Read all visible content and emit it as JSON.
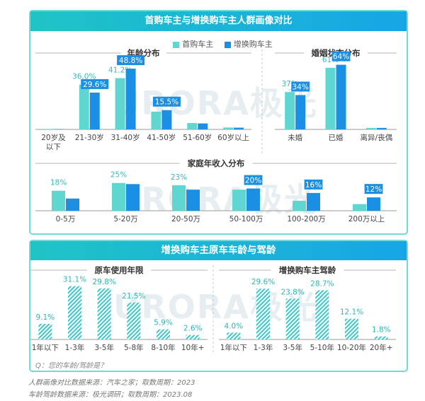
{
  "top_panel": {
    "title": "首购车主与增换购车主人群画像对比",
    "legend": [
      {
        "label": "首购车主",
        "color": "#5fd6cf"
      },
      {
        "label": "增换购车主",
        "color": "#1a8fe3"
      }
    ]
  },
  "bottom_panel": {
    "title": "增换购车主原车车龄与驾龄",
    "question": "Q：您的车龄/驾龄是？"
  },
  "watermark": "URORA极光",
  "footnotes": [
    "人群画像对比数据来源：汽车之家；取数周期：2023",
    "车龄驾龄数据来源：极光调研；取数周期：2023.08"
  ],
  "chart_data": [
    {
      "type": "bar",
      "title": "年龄分布",
      "categories": [
        "20岁及以下",
        "21-30岁",
        "31-40岁",
        "41-50岁",
        "51-60岁",
        "60岁以上"
      ],
      "category_lines": [
        [
          "20岁及",
          "以下"
        ],
        [
          "21-30岁"
        ],
        [
          "31-40岁"
        ],
        [
          "41-50岁"
        ],
        [
          "51-60岁"
        ],
        [
          "60岁以上"
        ]
      ],
      "series": [
        {
          "name": "首购车主",
          "values": [
            0.4,
            36.0,
            41.2,
            14.3,
            5.1,
            1.5
          ],
          "labels": [
            "",
            "36.0%",
            "41.2%",
            "",
            "",
            ""
          ]
        },
        {
          "name": "增换购车主",
          "values": [
            0.3,
            29.6,
            48.8,
            15.5,
            4.8,
            1.4
          ],
          "labels": [
            "",
            "29.6%",
            "48.8%",
            "15.5%",
            "",
            ""
          ]
        }
      ],
      "ylim": [
        0,
        50
      ]
    },
    {
      "type": "bar",
      "title": "婚姻状态分布",
      "categories": [
        "未婚",
        "已婚",
        "离异/丧偶"
      ],
      "series": [
        {
          "name": "首购车主",
          "values": [
            37,
            61,
            1.5
          ],
          "labels": [
            "37%",
            "61%",
            ""
          ]
        },
        {
          "name": "增换购车主",
          "values": [
            34,
            64,
            1.5
          ],
          "labels": [
            "34%",
            "64%",
            ""
          ]
        }
      ],
      "ylim": [
        0,
        70
      ]
    },
    {
      "type": "bar",
      "title": "家庭年收入分布",
      "categories": [
        "0-5万",
        "5-20万",
        "20-50万",
        "50-100万",
        "100-200万",
        "200万以上"
      ],
      "series": [
        {
          "name": "首购车主",
          "values": [
            18,
            25,
            23,
            19,
            9,
            6
          ],
          "labels": [
            "18%",
            "25%",
            "23%",
            "",
            "",
            ""
          ]
        },
        {
          "name": "增换购车主",
          "values": [
            11,
            24,
            19,
            20,
            16,
            12
          ],
          "labels": [
            "",
            "",
            "",
            "20%",
            "16%",
            "12%"
          ]
        }
      ],
      "ylim": [
        0,
        28
      ]
    },
    {
      "type": "bar",
      "title": "原车使用年限",
      "categories": [
        "1年以下",
        "1-3年",
        "3-5年",
        "5-8年",
        "8-10年",
        "10年+"
      ],
      "values": [
        9.1,
        31.1,
        29.8,
        21.5,
        5.9,
        2.6
      ],
      "labels": [
        "9.1%",
        "31.1%",
        "29.8%",
        "21.5%",
        "5.9%",
        "2.6%"
      ],
      "ylim": [
        0,
        33
      ]
    },
    {
      "type": "bar",
      "title": "增换购车主驾龄",
      "categories": [
        "1年以下",
        "1-3年",
        "3-5年",
        "5-10年",
        "10-20年",
        "20年+"
      ],
      "values": [
        4.0,
        29.6,
        23.8,
        28.7,
        12.1,
        1.8
      ],
      "labels": [
        "4.0%",
        "29.6%",
        "23.8%",
        "28.7%",
        "12.1%",
        "1.8%"
      ],
      "ylim": [
        0,
        33
      ]
    }
  ]
}
